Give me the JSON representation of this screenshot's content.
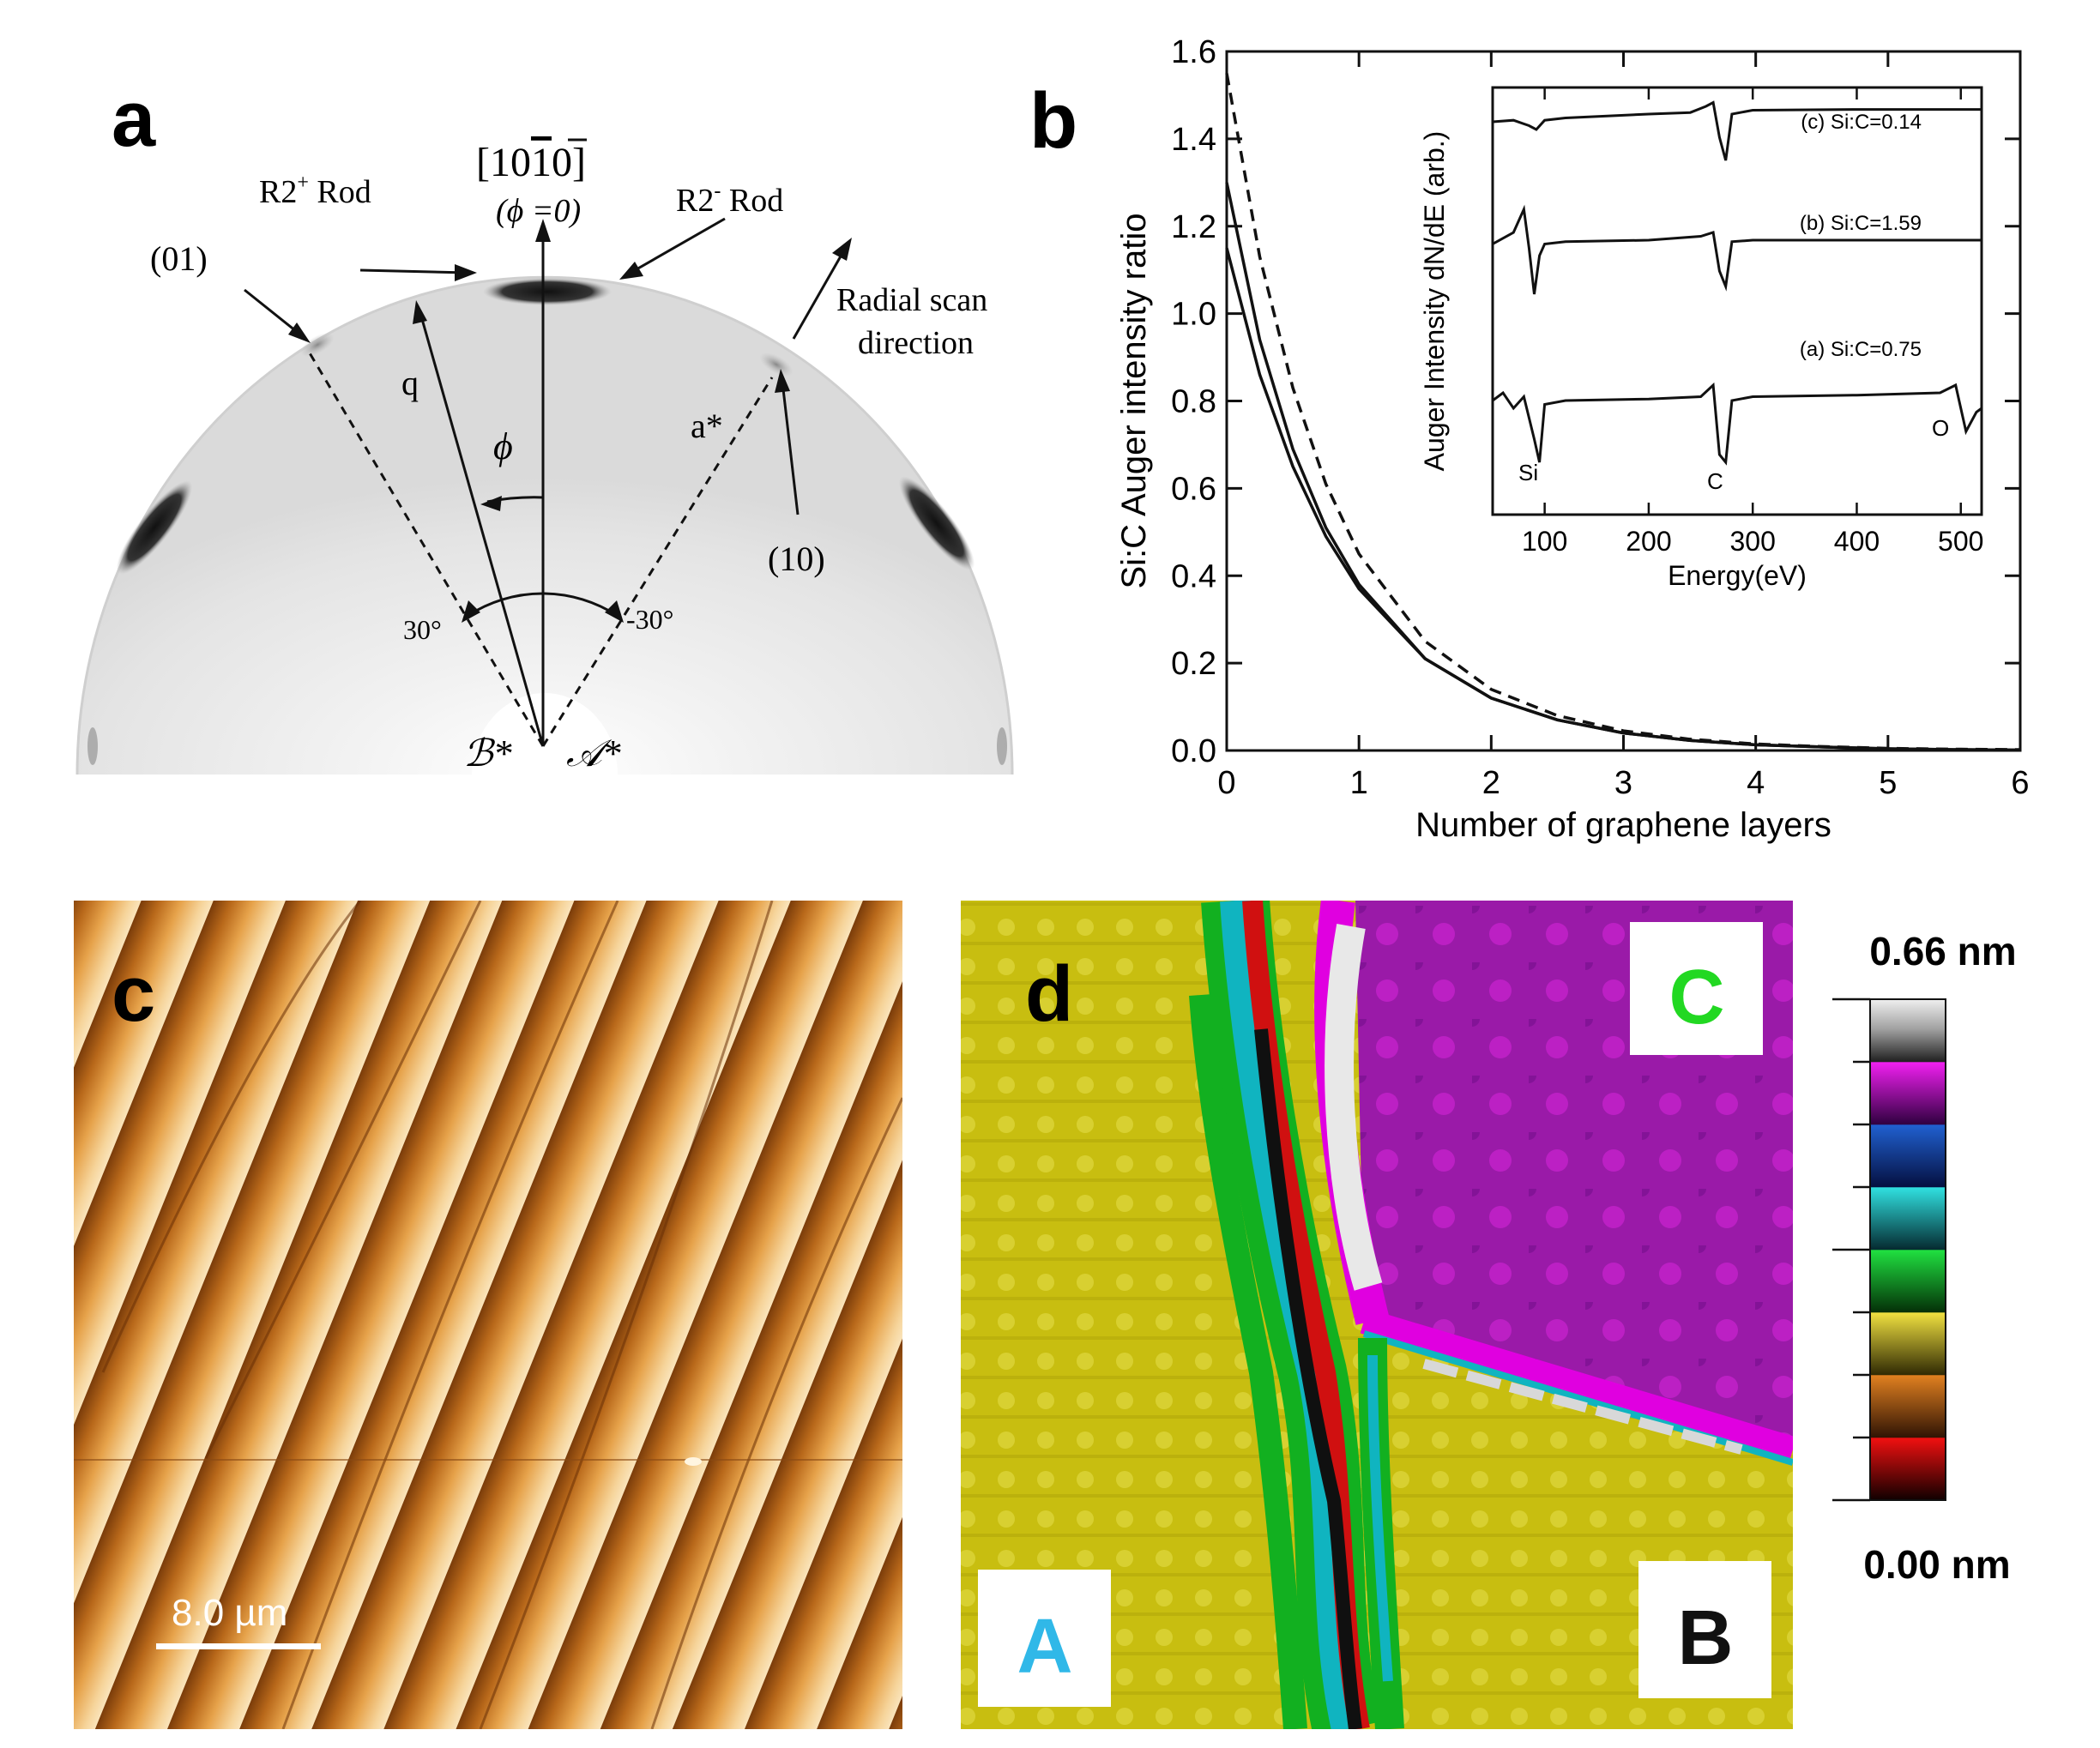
{
  "panels": {
    "a": {
      "letter": "a",
      "labels": {
        "direction": "[10",
        "direction_bar": "1",
        "direction_end": "0]",
        "phi_zero": "(ϕ =0)",
        "r2plus": "R2",
        "r2plus_sup": "+",
        "r2plus_rod": " Rod",
        "r2minus": "R2",
        "r2minus_sup": "-",
        "r2minus_rod": " Rod",
        "spot01": "(01)",
        "spot10": "(10)",
        "radial1": "Radial scan",
        "radial2": "direction",
        "q": "q",
        "phi": "ϕ",
        "astar": "a*",
        "angle_pos": "30°",
        "angle_neg": "-30°",
        "bstar": "ℬ*",
        "astar_domain": "𝒜*"
      }
    },
    "b": {
      "letter": "b",
      "inset_labels": {
        "c": "(c) Si:C=0.14",
        "b": "(b) Si:C=1.59",
        "a": "(a) Si:C=0.75",
        "si": "Si",
        "c_el": "C",
        "o": "O"
      }
    },
    "c": {
      "letter": "c",
      "scale": "8.0 µm"
    },
    "d": {
      "letter": "d",
      "scale_top": "0.66 nm",
      "scale_bottom": "0.00 nm",
      "region_a": "A",
      "region_b": "B",
      "region_c": "C",
      "colors": [
        "#d8d8d8",
        "#e000e0",
        "#1a4fc0",
        "#10b4c0",
        "#12b020",
        "#c8c000",
        "#a05a10",
        "#d01010"
      ]
    }
  },
  "chart_data": [
    {
      "type": "line",
      "xlabel": "Number of graphene layers",
      "ylabel": "Si:C Auger intensity ratio",
      "xlim": [
        0,
        6
      ],
      "ylim": [
        0,
        1.6
      ],
      "xticks": [
        "0",
        "1",
        "2",
        "3",
        "4",
        "5",
        "6"
      ],
      "yticks": [
        "0.0",
        "0.2",
        "0.4",
        "0.6",
        "0.8",
        "1.0",
        "1.2",
        "1.4",
        "1.6"
      ],
      "grid": false,
      "series": [
        {
          "style": "solid",
          "x": [
            0,
            0.25,
            0.5,
            0.75,
            1,
            1.5,
            2,
            2.5,
            3,
            3.5,
            4,
            4.5,
            5,
            5.5,
            6
          ],
          "y": [
            1.15,
            0.86,
            0.65,
            0.49,
            0.37,
            0.21,
            0.12,
            0.07,
            0.04,
            0.023,
            0.013,
            0.008,
            0.004,
            0.002,
            0.001
          ]
        },
        {
          "style": "solid",
          "x": [
            0,
            0.25,
            0.5,
            0.75,
            1,
            1.5,
            2,
            2.5,
            3,
            3.5,
            4,
            4.5,
            5,
            5.5,
            6
          ],
          "y": [
            1.3,
            0.94,
            0.69,
            0.51,
            0.38,
            0.21,
            0.12,
            0.07,
            0.04,
            0.023,
            0.013,
            0.008,
            0.004,
            0.002,
            0.001
          ]
        },
        {
          "style": "dashed",
          "x": [
            0,
            0.25,
            0.5,
            0.75,
            1,
            1.5,
            2,
            2.5,
            3,
            3.5,
            4,
            4.5,
            5,
            5.5,
            6
          ],
          "y": [
            1.55,
            1.13,
            0.83,
            0.61,
            0.45,
            0.25,
            0.14,
            0.08,
            0.045,
            0.026,
            0.015,
            0.009,
            0.005,
            0.003,
            0.002
          ]
        }
      ]
    },
    {
      "type": "line",
      "xlabel": "Energy(eV)",
      "ylabel": "Auger Intensity dN/dE (arb.)",
      "xlim": [
        50,
        520
      ],
      "xticks": [
        "100",
        "200",
        "300",
        "400",
        "500"
      ],
      "series": [
        {
          "name": "(c) Si:C=0.14",
          "x": [
            50,
            70,
            85,
            92,
            100,
            120,
            200,
            240,
            255,
            262,
            268,
            274,
            280,
            300,
            400,
            520
          ],
          "y": [
            0.7,
            0.72,
            0.65,
            0.6,
            0.72,
            0.75,
            0.8,
            0.82,
            0.9,
            0.95,
            0.5,
            0.2,
            0.8,
            0.85,
            0.86,
            0.86
          ]
        },
        {
          "name": "(b) Si:C=1.59",
          "x": [
            50,
            70,
            80,
            85,
            90,
            95,
            100,
            120,
            200,
            250,
            262,
            268,
            274,
            280,
            300,
            400,
            520
          ],
          "y": [
            0.45,
            0.6,
            0.9,
            0.4,
            -0.2,
            0.3,
            0.45,
            0.48,
            0.5,
            0.55,
            0.6,
            0.1,
            -0.1,
            0.48,
            0.5,
            0.5,
            0.5
          ]
        },
        {
          "name": "(a) Si:C=0.75",
          "x": [
            50,
            60,
            70,
            80,
            90,
            95,
            100,
            120,
            200,
            250,
            262,
            268,
            274,
            280,
            300,
            400,
            480,
            495,
            505,
            515,
            520
          ],
          "y": [
            0.2,
            0.3,
            0.1,
            0.25,
            -0.3,
            -0.6,
            0.15,
            0.2,
            0.22,
            0.25,
            0.4,
            -0.5,
            -0.6,
            0.2,
            0.25,
            0.27,
            0.3,
            0.4,
            -0.2,
            0.05,
            0.1
          ]
        }
      ]
    }
  ]
}
